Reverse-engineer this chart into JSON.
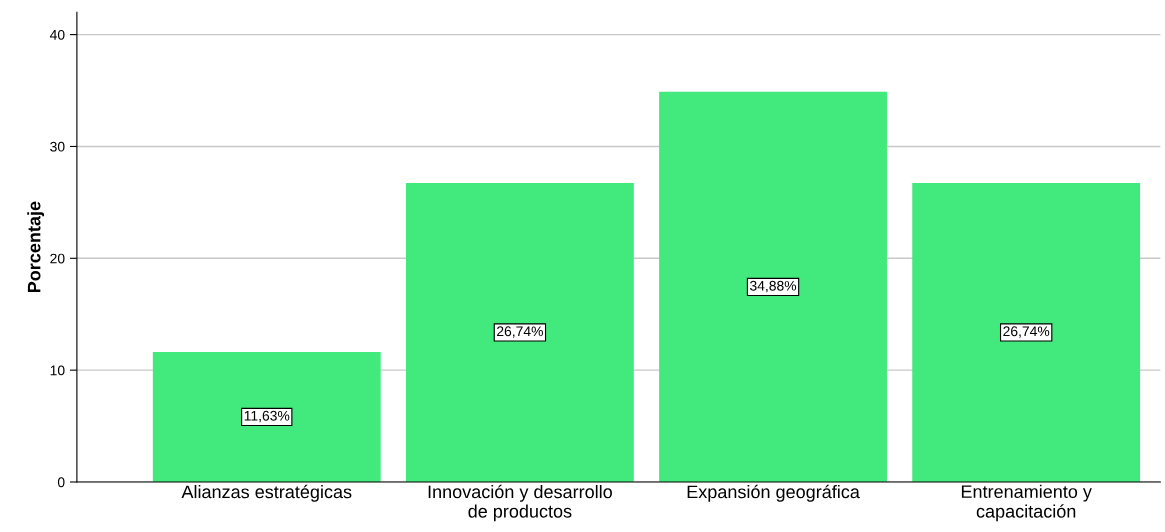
{
  "chart_data": {
    "type": "bar",
    "ylabel": "Porcentaje",
    "categories": [
      "Alianzas estratégicas",
      "Innovación y desarrollo\nde productos",
      "Expansión geográfica",
      "Entrenamiento y\ncapacitación"
    ],
    "values": [
      11.63,
      26.74,
      34.88,
      26.74
    ],
    "value_labels": [
      "11,63%",
      "26,74%",
      "34,88%",
      "26,74%"
    ],
    "color": "#42e97c",
    "ylim": [
      0,
      42
    ],
    "yticks": [
      0,
      10,
      20,
      30,
      40
    ],
    "grid": "y"
  }
}
